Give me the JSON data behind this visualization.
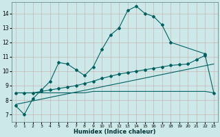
{
  "bg_color": "#cce8e8",
  "line_color": "#006060",
  "xlabel": "Humidex (Indice chaleur)",
  "xlim": [
    -0.5,
    23.5
  ],
  "ylim": [
    6.5,
    14.8
  ],
  "xticks": [
    0,
    1,
    2,
    3,
    4,
    5,
    6,
    7,
    8,
    9,
    10,
    11,
    12,
    13,
    14,
    15,
    16,
    17,
    18,
    19,
    20,
    21,
    22,
    23
  ],
  "yticks": [
    7,
    8,
    9,
    10,
    11,
    12,
    13,
    14
  ],
  "curve1_x": [
    0,
    1,
    2,
    3,
    4,
    5,
    6,
    7,
    8,
    9,
    10,
    11,
    12,
    13,
    14,
    15,
    16,
    17,
    18,
    22
  ],
  "curve1_y": [
    7.6,
    7.0,
    8.1,
    8.7,
    9.3,
    10.6,
    10.5,
    10.1,
    9.7,
    10.3,
    11.5,
    12.5,
    13.0,
    14.2,
    14.5,
    14.0,
    13.8,
    13.2,
    12.0,
    11.2
  ],
  "curve2_x": [
    0,
    1,
    2,
    3,
    4,
    5,
    6,
    7,
    8,
    9,
    10,
    11,
    12,
    13,
    14,
    15,
    16,
    17,
    18,
    19,
    20,
    21,
    22,
    23
  ],
  "curve2_y": [
    8.5,
    8.5,
    8.5,
    8.5,
    8.5,
    8.5,
    8.5,
    8.5,
    8.5,
    8.6,
    8.6,
    8.6,
    8.6,
    8.6,
    8.6,
    8.6,
    8.6,
    8.6,
    8.6,
    8.6,
    8.6,
    8.6,
    8.6,
    8.5
  ],
  "curve3_x": [
    0,
    23
  ],
  "curve3_y": [
    7.7,
    10.5
  ],
  "curve4_x": [
    0,
    1,
    2,
    3,
    4,
    5,
    6,
    7,
    8,
    9,
    10,
    11,
    12,
    13,
    14,
    15,
    16,
    17,
    18,
    19,
    20,
    21,
    22,
    23
  ],
  "curve4_y": [
    8.5,
    8.5,
    8.5,
    8.6,
    8.7,
    8.8,
    8.9,
    9.0,
    9.15,
    9.3,
    9.5,
    9.65,
    9.8,
    9.9,
    10.0,
    10.1,
    10.2,
    10.3,
    10.4,
    10.45,
    10.5,
    10.8,
    11.1,
    8.5
  ]
}
